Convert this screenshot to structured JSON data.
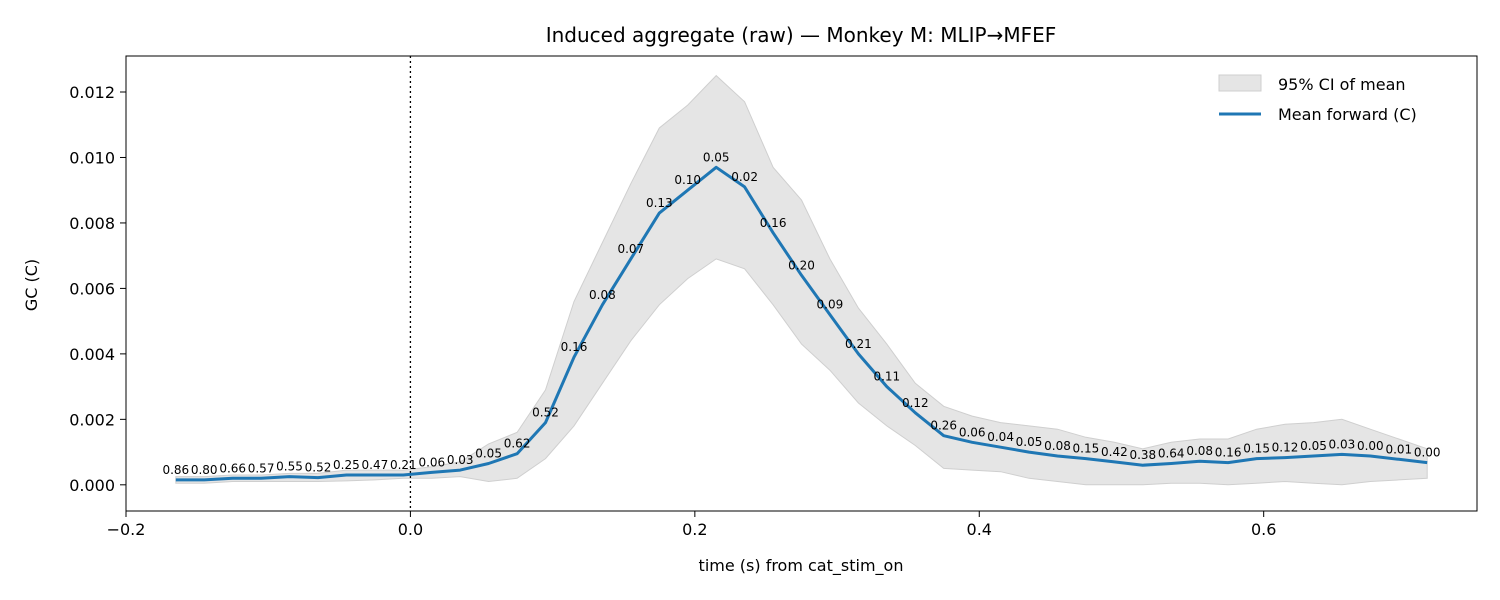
{
  "chart_data": {
    "type": "line",
    "title": "Induced aggregate (raw) — Monkey M: MLIP→MFEF",
    "xlabel": "time (s) from cat_stim_on",
    "ylabel": "GC (C)",
    "xlim": [
      -0.2,
      0.75
    ],
    "ylim": [
      -0.0008,
      0.0131
    ],
    "x_ticks": [
      -0.2,
      0.0,
      0.2,
      0.4,
      0.6
    ],
    "x_tick_labels": [
      "−0.2",
      "0.0",
      "0.2",
      "0.4",
      "0.6"
    ],
    "y_ticks": [
      0.0,
      0.002,
      0.004,
      0.006,
      0.008,
      0.01,
      0.012
    ],
    "y_tick_labels": [
      "0.000",
      "0.002",
      "0.004",
      "0.006",
      "0.008",
      "0.010",
      "0.012"
    ],
    "vline_x": 0.0,
    "legend": {
      "position": "top-right",
      "entries": [
        "95% CI of mean",
        "Mean forward (C)"
      ]
    },
    "colors": {
      "line": "#1f77b4",
      "band": "#e5e5e5",
      "band_edge": "#cfcfcf"
    },
    "x": [
      -0.165,
      -0.145,
      -0.125,
      -0.105,
      -0.085,
      -0.065,
      -0.045,
      -0.025,
      -0.005,
      0.015,
      0.035,
      0.055,
      0.075,
      0.095,
      0.115,
      0.135,
      0.155,
      0.175,
      0.195,
      0.215,
      0.235,
      0.255,
      0.275,
      0.295,
      0.315,
      0.335,
      0.355,
      0.375,
      0.395,
      0.415,
      0.435,
      0.455,
      0.475,
      0.495,
      0.515,
      0.535,
      0.555,
      0.575,
      0.595,
      0.615,
      0.635,
      0.655,
      0.675,
      0.695,
      0.715
    ],
    "series": [
      {
        "name": "Mean forward (C)",
        "values": [
          0.00015,
          0.00015,
          0.0002,
          0.0002,
          0.00025,
          0.00022,
          0.0003,
          0.0003,
          0.0003,
          0.00038,
          0.00045,
          0.00065,
          0.00095,
          0.0019,
          0.0039,
          0.0055,
          0.0069,
          0.0083,
          0.009,
          0.0097,
          0.0091,
          0.0077,
          0.0064,
          0.0052,
          0.004,
          0.003,
          0.0022,
          0.0015,
          0.0013,
          0.00115,
          0.001,
          0.00088,
          0.0008,
          0.0007,
          0.0006,
          0.00065,
          0.00072,
          0.00068,
          0.0008,
          0.00083,
          0.00088,
          0.00093,
          0.00088,
          0.00078,
          0.00068
        ]
      }
    ],
    "ci_lower": [
      5e-05,
      5e-05,
      0.0001,
      0.0001,
      0.0001,
      0.0001,
      0.00012,
      0.00015,
      0.0002,
      0.0002,
      0.00025,
      0.0001,
      0.0002,
      0.0008,
      0.0018,
      0.0031,
      0.0044,
      0.0055,
      0.0063,
      0.0069,
      0.0066,
      0.0055,
      0.0043,
      0.0035,
      0.0025,
      0.0018,
      0.0012,
      0.0005,
      0.00045,
      0.0004,
      0.0002,
      0.0001,
      0.0,
      0.0,
      0.0,
      5e-05,
      5e-05,
      0.0,
      5e-05,
      0.0001,
      5e-05,
      0.0,
      0.0001,
      0.00015,
      0.0002
    ],
    "ci_upper": [
      0.00025,
      0.00025,
      0.0003,
      0.0003,
      0.00035,
      0.00035,
      0.00045,
      0.00045,
      0.00045,
      0.00055,
      0.0007,
      0.00125,
      0.0016,
      0.0029,
      0.0056,
      0.0074,
      0.0092,
      0.0109,
      0.0116,
      0.0125,
      0.0117,
      0.0097,
      0.0087,
      0.0069,
      0.0054,
      0.0043,
      0.0031,
      0.0024,
      0.0021,
      0.0019,
      0.0018,
      0.0017,
      0.00145,
      0.0013,
      0.0011,
      0.0013,
      0.0014,
      0.0014,
      0.0017,
      0.00185,
      0.0019,
      0.002,
      0.0017,
      0.0014,
      0.0011
    ],
    "point_labels": [
      "0.86",
      "0.80",
      "0.66",
      "0.57",
      "0.55",
      "0.52",
      "0.25",
      "0.47",
      "0.21",
      "0.06",
      "0.03",
      "0.05",
      "0.62",
      "0.52",
      "0.16",
      "0.08",
      "0.07",
      "0.13",
      "0.10",
      "0.05",
      "0.02",
      "0.16",
      "0.20",
      "0.09",
      "0.21",
      "0.11",
      "0.12",
      "0.26",
      "0.06",
      "0.04",
      "0.05",
      "0.08",
      "0.15",
      "0.42",
      "0.38",
      "0.64",
      "0.08",
      "0.16",
      "0.15",
      "0.12",
      "0.05",
      "0.03",
      "0.00",
      "0.01",
      "0.00"
    ]
  }
}
